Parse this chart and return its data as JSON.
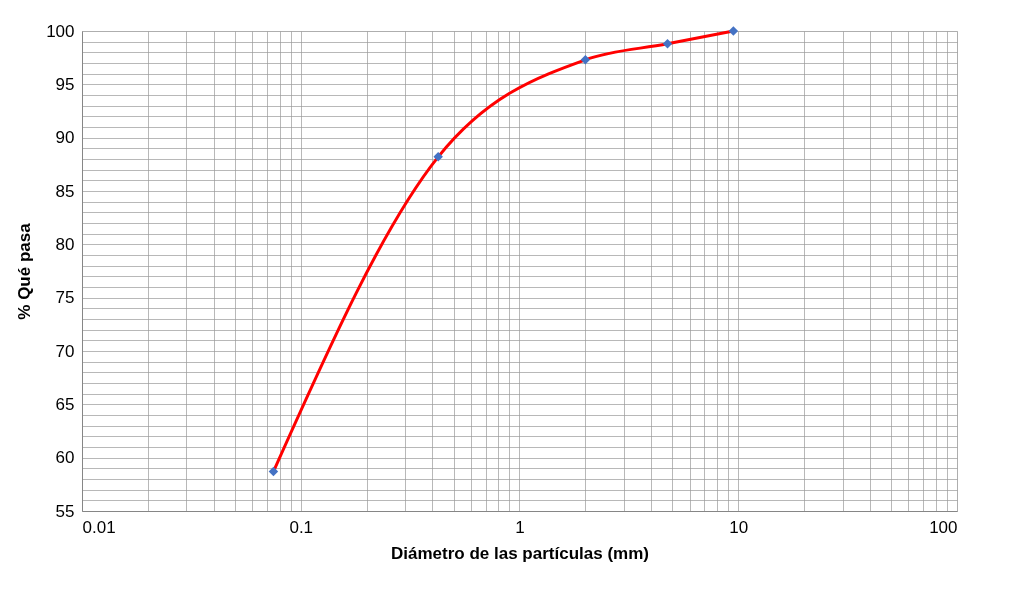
{
  "chart_data": {
    "type": "line",
    "xlabel": "Diámetro de las partículas (mm)",
    "ylabel": "% Qué pasa",
    "log": "x",
    "grid": true,
    "xlim": [
      0.01,
      100
    ],
    "ylim": [
      55,
      100
    ],
    "xticks": [
      0.01,
      {
        "value": 0.02,
        "label": null
      },
      {
        "value": 0.03,
        "label": null
      },
      {
        "value": 0.04,
        "label": null
      },
      {
        "value": 0.05,
        "label": null
      },
      {
        "value": 0.06,
        "label": null
      },
      {
        "value": 0.07,
        "label": null
      },
      {
        "value": 0.08,
        "label": null
      },
      {
        "value": 0.09,
        "label": null
      },
      0.1,
      {
        "value": 0.2,
        "label": null
      },
      {
        "value": 0.3,
        "label": null
      },
      {
        "value": 0.4,
        "label": null
      },
      {
        "value": 0.5,
        "label": null
      },
      {
        "value": 0.6,
        "label": null
      },
      {
        "value": 0.7,
        "label": null
      },
      {
        "value": 0.8,
        "label": null
      },
      {
        "value": 0.9,
        "label": null
      },
      1,
      {
        "value": 2,
        "label": null
      },
      {
        "value": 3,
        "label": null
      },
      {
        "value": 4,
        "label": null
      },
      {
        "value": 5,
        "label": null
      },
      {
        "value": 6,
        "label": null
      },
      {
        "value": 7,
        "label": null
      },
      {
        "value": 8,
        "label": null
      },
      {
        "value": 9,
        "label": null
      },
      10,
      {
        "value": 20,
        "label": null
      },
      {
        "value": 30,
        "label": null
      },
      {
        "value": 40,
        "label": null
      },
      {
        "value": 50,
        "label": null
      },
      {
        "value": 60,
        "label": null
      },
      {
        "value": 70,
        "label": null
      },
      {
        "value": 80,
        "label": null
      },
      {
        "value": 90,
        "label": null
      },
      100
    ],
    "yticks": [
      55,
      {
        "value": 56,
        "label": null
      },
      {
        "value": 57,
        "label": null
      },
      {
        "value": 58,
        "label": null
      },
      {
        "value": 59,
        "label": null
      },
      60,
      {
        "value": 61,
        "label": null
      },
      {
        "value": 62,
        "label": null
      },
      {
        "value": 63,
        "label": null
      },
      {
        "value": 64,
        "label": null
      },
      65,
      {
        "value": 66,
        "label": null
      },
      {
        "value": 67,
        "label": null
      },
      {
        "value": 68,
        "label": null
      },
      {
        "value": 69,
        "label": null
      },
      70,
      {
        "value": 71,
        "label": null
      },
      {
        "value": 72,
        "label": null
      },
      {
        "value": 73,
        "label": null
      },
      {
        "value": 74,
        "label": null
      },
      75,
      {
        "value": 76,
        "label": null
      },
      {
        "value": 77,
        "label": null
      },
      {
        "value": 78,
        "label": null
      },
      {
        "value": 79,
        "label": null
      },
      80,
      {
        "value": 81,
        "label": null
      },
      {
        "value": 82,
        "label": null
      },
      {
        "value": 83,
        "label": null
      },
      {
        "value": 84,
        "label": null
      },
      85,
      {
        "value": 86,
        "label": null
      },
      {
        "value": 87,
        "label": null
      },
      {
        "value": 88,
        "label": null
      },
      {
        "value": 89,
        "label": null
      },
      90,
      {
        "value": 91,
        "label": null
      },
      {
        "value": 92,
        "label": null
      },
      {
        "value": 93,
        "label": null
      },
      {
        "value": 94,
        "label": null
      },
      95,
      {
        "value": 96,
        "label": null
      },
      {
        "value": 97,
        "label": null
      },
      {
        "value": 98,
        "label": null
      },
      {
        "value": 99,
        "label": null
      },
      100
    ],
    "series": [
      {
        "color": "#ff0000",
        "marker": "none",
        "line_style": "solid",
        "x": [
          0.075,
          0.425,
          2,
          4.75,
          9.5
        ],
        "values": [
          58.7,
          88.2,
          97.3,
          98.8,
          100
        ]
      },
      {
        "type": "scatter",
        "color": "#4472c4",
        "marker": "diamond",
        "x": [
          0.075,
          0.425,
          2,
          4.75,
          9.5
        ],
        "values": [
          58.7,
          88.2,
          97.3,
          98.8,
          100
        ]
      }
    ]
  }
}
